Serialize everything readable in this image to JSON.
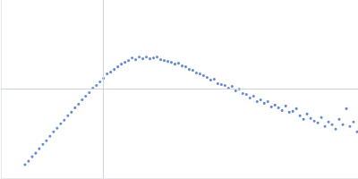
{
  "chart_data": {
    "type": "scatter",
    "color": "#3b6cc0",
    "marker": "circle",
    "grid": true,
    "tick_labels": false,
    "xlim": [
      0,
      400
    ],
    "ylim": [
      0,
      200
    ],
    "xticks": [
      115
    ],
    "yticks": [
      100
    ],
    "x": [
      27,
      31,
      35,
      39,
      43,
      47,
      51,
      55,
      59,
      63,
      67,
      71,
      75,
      79,
      83,
      87,
      91,
      95,
      99,
      103,
      107,
      111,
      115,
      119,
      123,
      127,
      131,
      135,
      139,
      143,
      147,
      151,
      155,
      159,
      163,
      167,
      171,
      175,
      179,
      183,
      187,
      191,
      195,
      199,
      203,
      207,
      211,
      215,
      219,
      223,
      227,
      231,
      235,
      239,
      243,
      247,
      251,
      255,
      259,
      263,
      267,
      271,
      275,
      279,
      283,
      287,
      291,
      295,
      299,
      303,
      307,
      311,
      315,
      319,
      323,
      327,
      331,
      335,
      339,
      343,
      347,
      351,
      355,
      359,
      363,
      367,
      371,
      375,
      379,
      383,
      387,
      391,
      395,
      399
    ],
    "values": [
      15,
      19,
      24,
      28,
      33,
      38,
      42,
      47,
      52,
      56,
      61,
      65,
      70,
      74,
      79,
      83,
      88,
      92,
      96,
      101,
      104,
      108,
      112,
      117,
      119,
      122,
      125,
      128,
      130,
      132,
      135,
      133,
      136,
      134,
      136,
      134,
      135,
      136,
      133,
      132,
      131,
      130,
      128,
      129,
      126,
      125,
      122,
      121,
      118,
      117,
      115,
      113,
      110,
      111,
      106,
      105,
      104,
      101,
      103,
      98,
      100,
      95,
      94,
      90,
      92,
      86,
      88,
      84,
      86,
      80,
      82,
      79,
      76,
      81,
      74,
      75,
      78,
      70,
      66,
      72,
      67,
      64,
      62,
      68,
      58,
      63,
      60,
      55,
      66,
      60,
      78,
      58,
      63,
      52
    ]
  }
}
